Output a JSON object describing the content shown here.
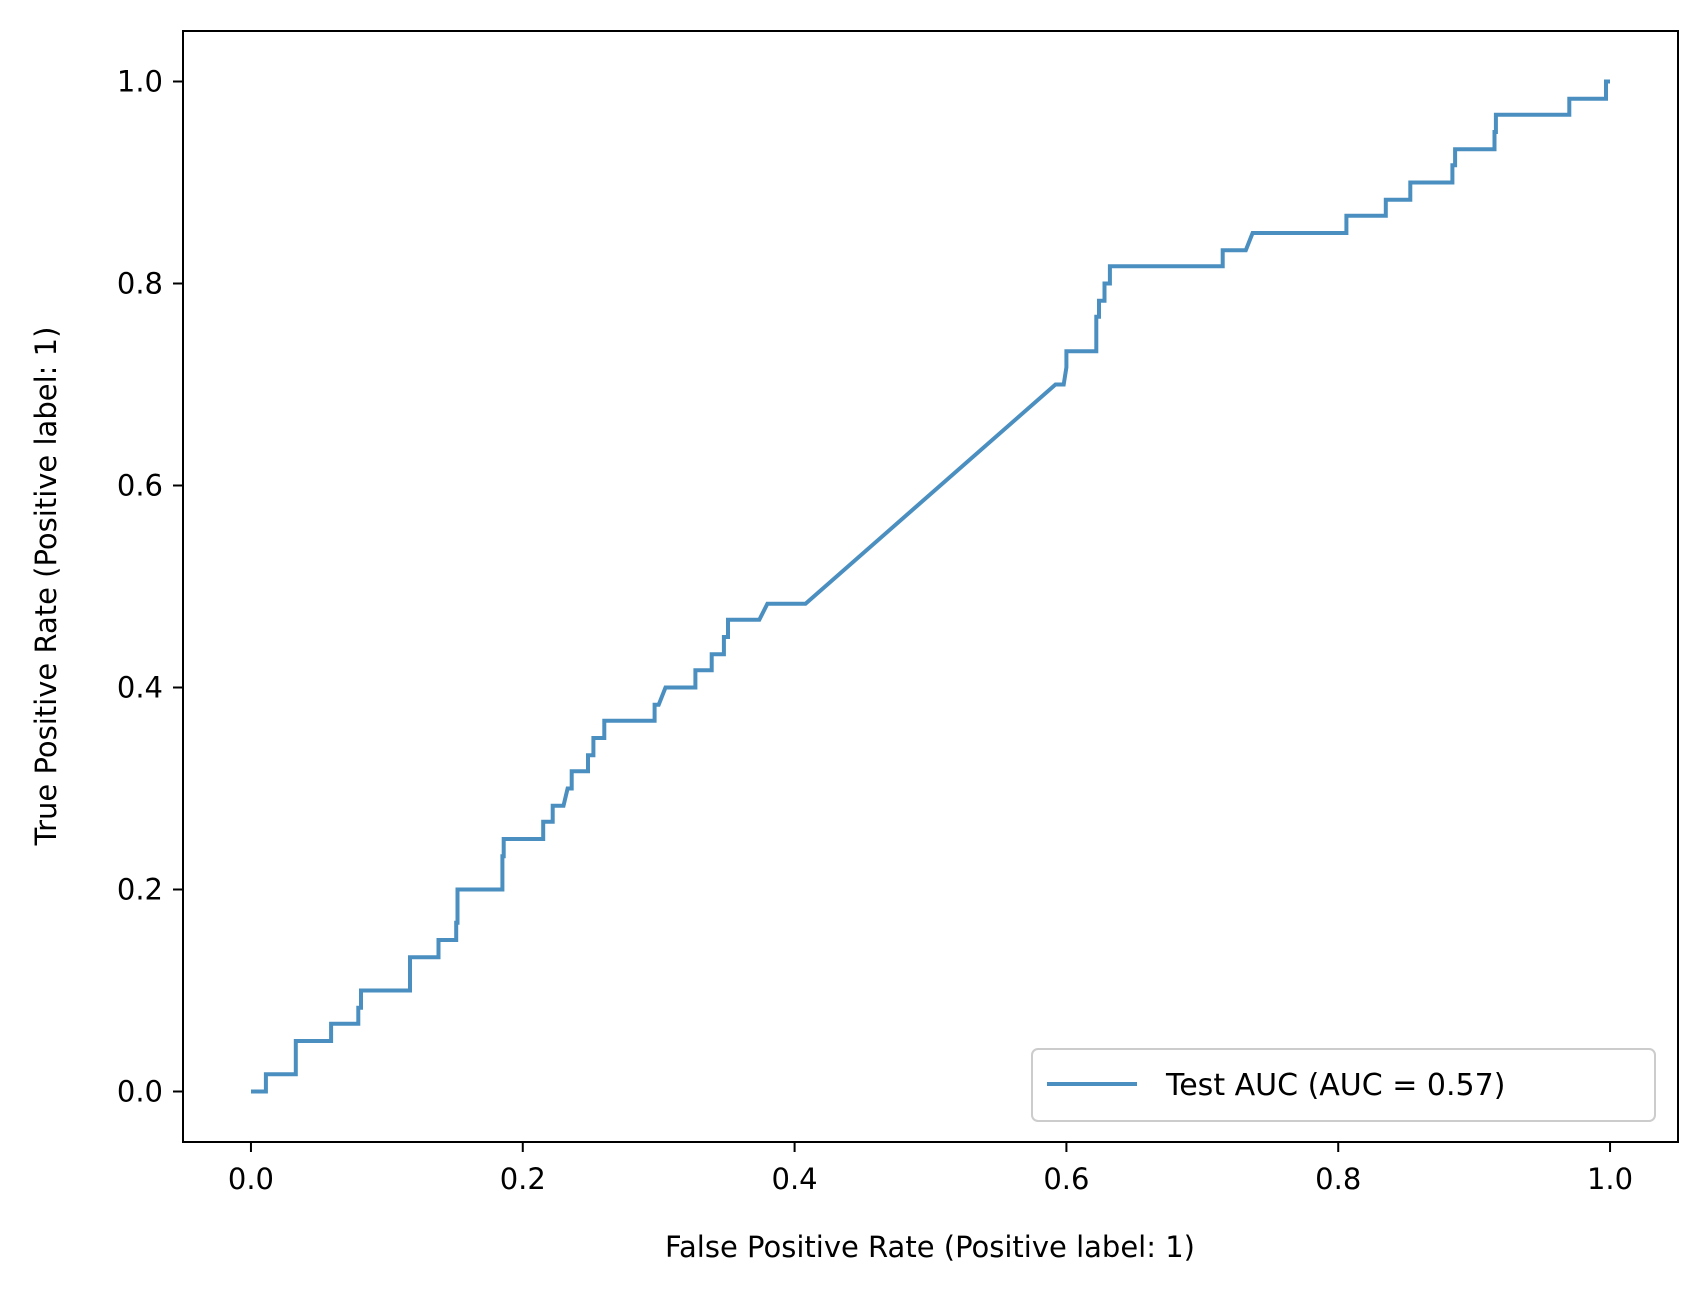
{
  "chart_data": {
    "type": "line",
    "title": "",
    "xlabel": "False Positive Rate (Positive label: 1)",
    "ylabel": "True Positive Rate (Positive label: 1)",
    "xlim": [
      -0.05,
      1.05
    ],
    "ylim": [
      -0.05,
      1.05
    ],
    "xticks": [
      0.0,
      0.2,
      0.4,
      0.6,
      0.8,
      1.0
    ],
    "xtick_labels": [
      "0.0",
      "0.2",
      "0.4",
      "0.6",
      "0.8",
      "1.0"
    ],
    "yticks": [
      0.0,
      0.2,
      0.4,
      0.6,
      0.8,
      1.0
    ],
    "ytick_labels": [
      "0.0",
      "0.2",
      "0.4",
      "0.6",
      "0.8",
      "1.0"
    ],
    "grid": false,
    "legend_position": "lower-right",
    "series": [
      {
        "name": "Test AUC (AUC = 0.57)",
        "color": "#4a8fc0",
        "x": [
          0.0,
          0.011,
          0.011,
          0.033,
          0.033,
          0.033,
          0.059,
          0.059,
          0.079,
          0.079,
          0.081,
          0.081,
          0.117,
          0.117,
          0.138,
          0.138,
          0.151,
          0.151,
          0.152,
          0.152,
          0.185,
          0.185,
          0.186,
          0.186,
          0.189,
          0.189,
          0.215,
          0.215,
          0.222,
          0.222,
          0.23,
          0.233,
          0.236,
          0.236,
          0.248,
          0.248,
          0.25,
          0.252,
          0.252,
          0.26,
          0.26,
          0.297,
          0.297,
          0.3,
          0.305,
          0.327,
          0.327,
          0.339,
          0.339,
          0.348,
          0.348,
          0.351,
          0.351,
          0.374,
          0.38,
          0.408,
          0.592,
          0.598,
          0.6,
          0.6,
          0.622,
          0.622,
          0.624,
          0.624,
          0.628,
          0.628,
          0.632,
          0.632,
          0.638,
          0.638,
          0.715,
          0.715,
          0.732,
          0.737,
          0.806,
          0.806,
          0.835,
          0.835,
          0.853,
          0.853,
          0.884,
          0.884,
          0.886,
          0.886,
          0.915,
          0.915,
          0.916,
          0.916,
          0.97,
          0.97,
          0.997,
          0.997,
          1.0
        ],
        "y": [
          0.0,
          0.0,
          0.017,
          0.017,
          0.033,
          0.05,
          0.05,
          0.067,
          0.067,
          0.083,
          0.083,
          0.1,
          0.1,
          0.133,
          0.133,
          0.15,
          0.15,
          0.167,
          0.167,
          0.2,
          0.2,
          0.233,
          0.233,
          0.25,
          0.25,
          0.25,
          0.25,
          0.267,
          0.267,
          0.283,
          0.283,
          0.3,
          0.3,
          0.317,
          0.317,
          0.333,
          0.333,
          0.333,
          0.35,
          0.35,
          0.367,
          0.367,
          0.383,
          0.383,
          0.4,
          0.4,
          0.417,
          0.417,
          0.433,
          0.433,
          0.45,
          0.45,
          0.467,
          0.467,
          0.483,
          0.483,
          0.7,
          0.7,
          0.717,
          0.733,
          0.733,
          0.767,
          0.767,
          0.783,
          0.783,
          0.8,
          0.8,
          0.817,
          0.817,
          0.817,
          0.817,
          0.833,
          0.833,
          0.85,
          0.85,
          0.867,
          0.867,
          0.883,
          0.883,
          0.9,
          0.9,
          0.917,
          0.917,
          0.933,
          0.933,
          0.95,
          0.95,
          0.967,
          0.967,
          0.983,
          0.983,
          1.0,
          1.0
        ]
      }
    ]
  }
}
